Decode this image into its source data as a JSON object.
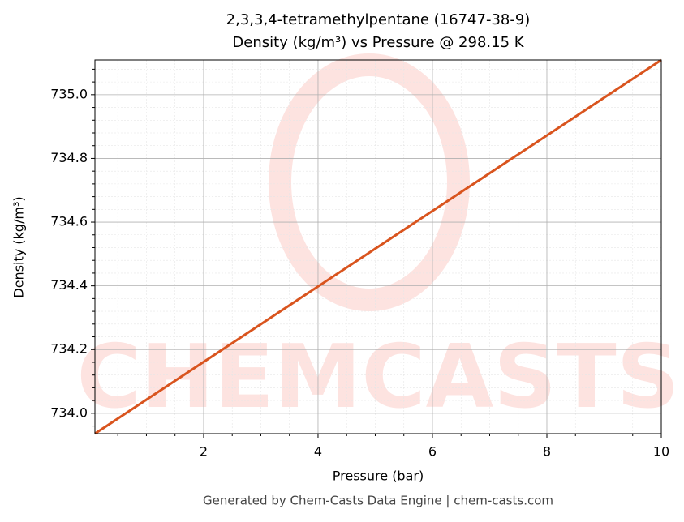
{
  "chart_data": {
    "type": "line",
    "title": "2,3,3,4-tetramethylpentane (16747-38-9)",
    "subtitle": "Density (kg/m³) vs Pressure @ 298.15 K",
    "x_label": "Pressure (bar)",
    "y_label": "Density (kg/m³)",
    "footer": "Generated by Chem-Casts Data Engine | chem-casts.com",
    "watermark": "CHEMCASTS",
    "x": [
      0.1,
      10
    ],
    "series": [
      {
        "name": "Density",
        "color": "#d9541e",
        "values": [
          733.936,
          735.109
        ]
      }
    ],
    "xlim": [
      0.1,
      10
    ],
    "ylim": [
      733.936,
      735.109
    ],
    "xticks": [
      2,
      4,
      6,
      8,
      10
    ],
    "yticks": [
      {
        "value": 734,
        "label": "734.0"
      },
      734.2,
      734.4,
      734.6,
      734.8,
      {
        "value": 735,
        "label": "735.0"
      }
    ],
    "xticks_minor": [
      0.5,
      1,
      1.5,
      2.5,
      3,
      3.5,
      4.5,
      5,
      5.5,
      6.5,
      7,
      7.5,
      8.5,
      9,
      9.5
    ],
    "yticks_minor": [
      733.96,
      734.04,
      734.08,
      734.12,
      734.16,
      734.24,
      734.28,
      734.32,
      734.36,
      734.44,
      734.48,
      734.52,
      734.56,
      734.64,
      734.68,
      734.72,
      734.76,
      734.84,
      734.88,
      734.92,
      734.96,
      735.04,
      735.08
    ],
    "grid": true
  }
}
